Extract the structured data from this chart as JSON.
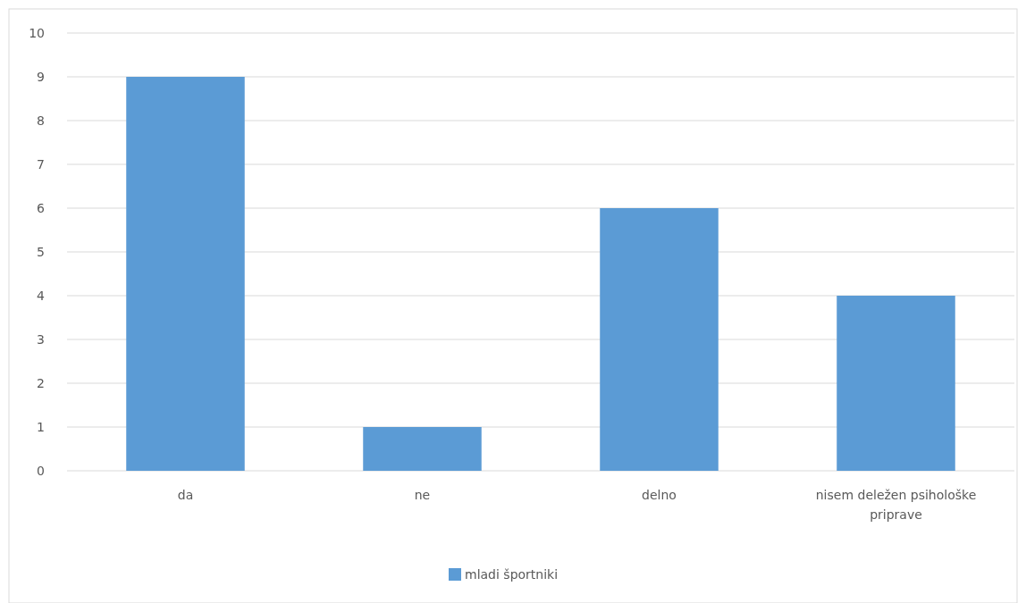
{
  "chart_data": {
    "type": "bar",
    "categories": [
      "da",
      "ne",
      "delno",
      "nisem deležen psihološke priprave"
    ],
    "series": [
      {
        "name": "mladi športniki",
        "color": "#5b9bd5",
        "values": [
          9,
          1,
          6,
          4
        ]
      }
    ],
    "ylim": [
      0,
      10
    ],
    "yticks": [
      0,
      1,
      2,
      3,
      4,
      5,
      6,
      7,
      8,
      9,
      10
    ],
    "grid": "y",
    "legend": "bottom"
  }
}
